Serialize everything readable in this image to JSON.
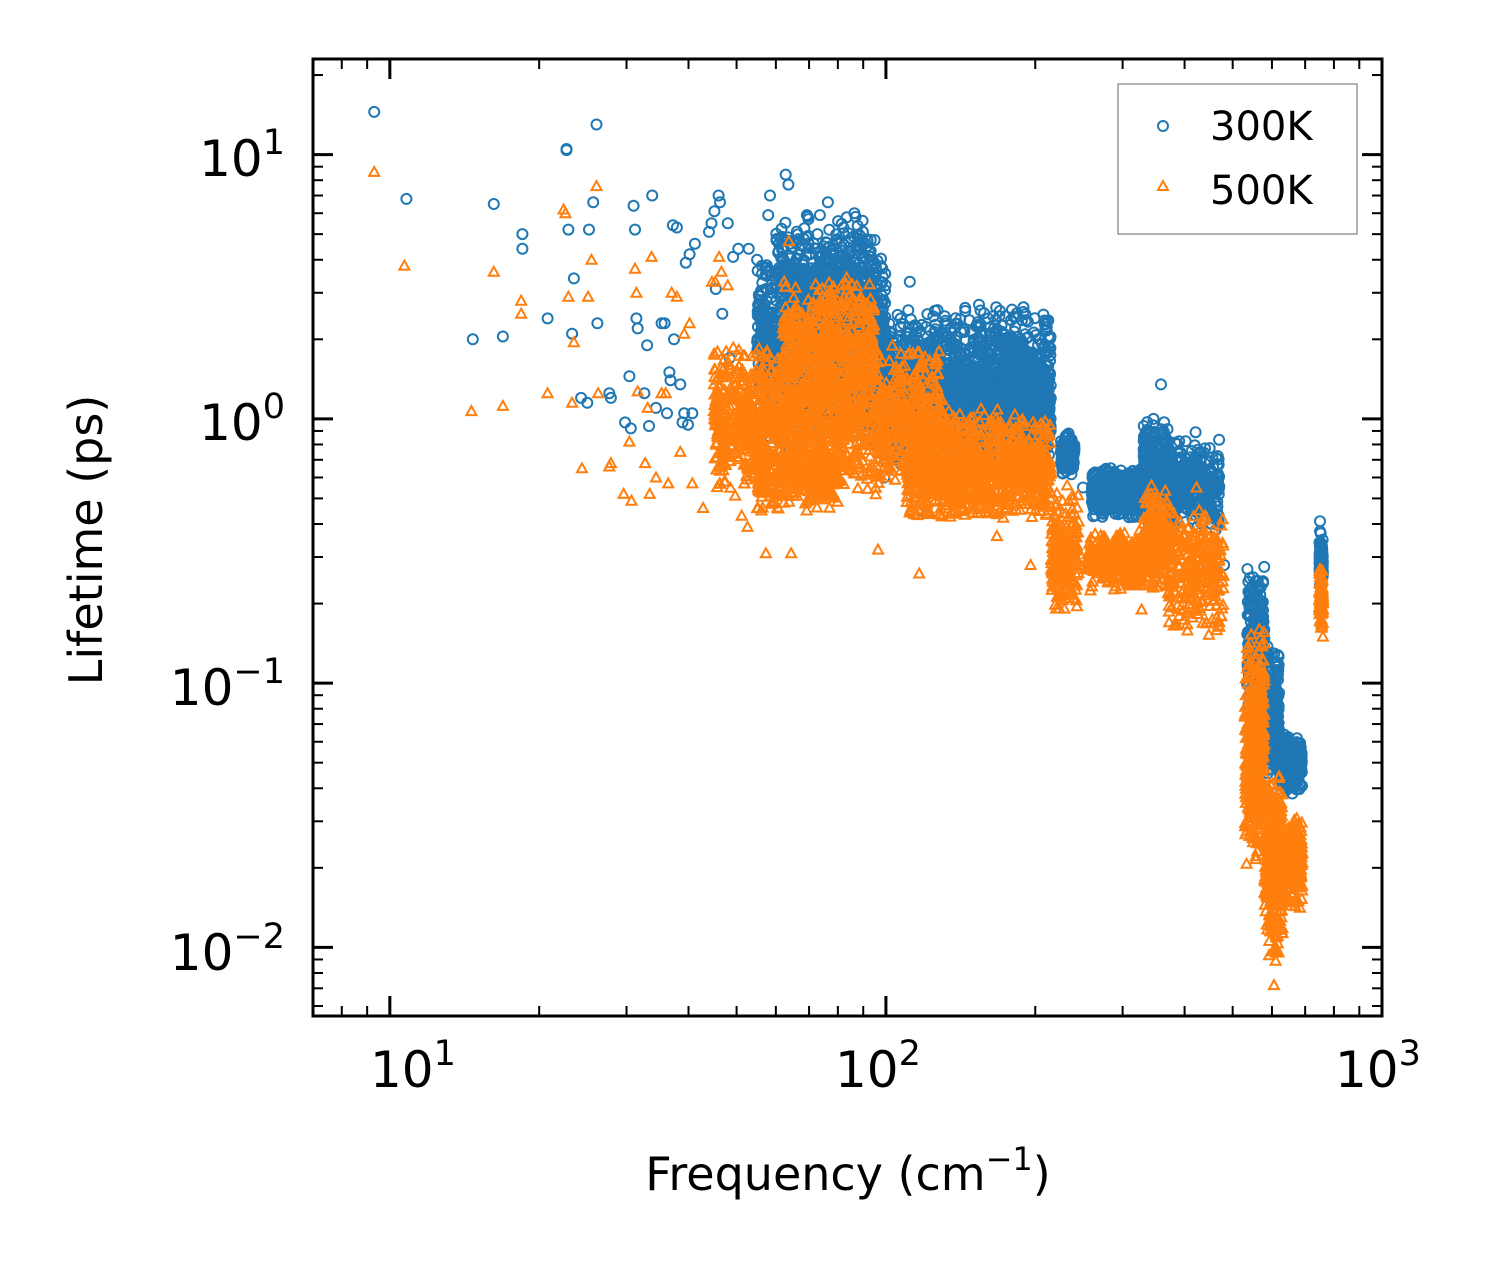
{
  "chart_data": {
    "type": "scatter",
    "title": "",
    "xlabel": "Frequency (cm",
    "xlabel_sup": "−1",
    "xlabel_tail": ")",
    "ylabel": "Lifetime (ps)",
    "xscale": "log",
    "yscale": "log",
    "xlim": [
      7,
      1000
    ],
    "ylim": [
      0.0055,
      23
    ],
    "legend_position": "top-right",
    "x_ticks": [
      {
        "base": "10",
        "exp": "1"
      },
      {
        "base": "10",
        "exp": "2"
      },
      {
        "base": "10",
        "exp": "3"
      }
    ],
    "y_ticks": [
      {
        "base": "10",
        "exp": "1"
      },
      {
        "base": "10",
        "exp": "0"
      },
      {
        "base": "10",
        "exp": "−1"
      },
      {
        "base": "10",
        "exp": "−2"
      }
    ],
    "series": [
      {
        "name": "300K",
        "marker": "circle",
        "color": "#1f77b4",
        "points": [
          [
            9.3,
            14.5
          ],
          [
            10.8,
            6.8
          ],
          [
            14.7,
            2.0
          ],
          [
            16.2,
            6.5
          ],
          [
            16.9,
            2.05
          ],
          [
            18.5,
            5.0
          ],
          [
            18.5,
            4.4
          ],
          [
            20.8,
            2.4
          ],
          [
            22.7,
            10.5
          ],
          [
            22.7,
            10.4
          ],
          [
            22.9,
            5.2
          ],
          [
            23.3,
            2.1
          ],
          [
            23.5,
            3.4
          ],
          [
            24.3,
            1.2
          ],
          [
            25.0,
            1.15
          ],
          [
            25.2,
            5.2
          ],
          [
            25.7,
            6.6
          ],
          [
            26.1,
            13.0
          ],
          [
            26.2,
            2.3
          ],
          [
            27.7,
            1.25
          ],
          [
            27.9,
            1.2
          ],
          [
            29.8,
            0.97
          ],
          [
            30.4,
            1.45
          ],
          [
            30.6,
            0.92
          ],
          [
            31.0,
            6.4
          ],
          [
            31.2,
            5.2
          ],
          [
            31.4,
            2.4
          ],
          [
            31.6,
            2.2
          ],
          [
            32.6,
            1.25
          ],
          [
            33.0,
            1.9
          ],
          [
            33.3,
            0.94
          ],
          [
            33.8,
            7.0
          ],
          [
            34.4,
            1.1
          ],
          [
            35.3,
            2.3
          ],
          [
            35.8,
            2.3
          ],
          [
            36.2,
            1.05
          ],
          [
            36.6,
            1.5
          ],
          [
            36.8,
            1.4
          ],
          [
            37.2,
            5.4
          ],
          [
            37.4,
            2.0
          ],
          [
            37.9,
            5.3
          ],
          [
            38.5,
            1.35
          ],
          [
            38.9,
            0.97
          ],
          [
            39.2,
            1.05
          ],
          [
            39.5,
            3.9
          ],
          [
            39.9,
            0.95
          ],
          [
            40.2,
            4.2
          ],
          [
            40.7,
            1.05
          ],
          [
            41.2,
            4.6
          ],
          [
            44.0,
            5.1
          ],
          [
            44.5,
            5.5
          ],
          [
            45.1,
            6.1
          ],
          [
            45.4,
            3.1
          ],
          [
            46.0,
            7.0
          ],
          [
            46.3,
            6.6
          ],
          [
            46.8,
            2.5
          ],
          [
            47.2,
            1.0
          ],
          [
            47.6,
            0.87
          ],
          [
            48.0,
            5.5
          ],
          [
            48.4,
            1.7
          ],
          [
            48.7,
            1.0
          ],
          [
            49.2,
            4.1
          ],
          [
            50.4,
            4.4
          ],
          [
            52.0,
            1.05
          ],
          [
            52.9,
            4.4
          ],
          [
            55.0,
            4.0
          ],
          [
            57.9,
            5.9
          ],
          [
            58.4,
            7.0
          ],
          [
            62.8,
            8.4
          ],
          [
            63.6,
            7.7
          ],
          [
            69.3,
            5.9
          ],
          [
            69.8,
            5.7
          ],
          [
            73.6,
            5.9
          ],
          [
            76.4,
            6.6
          ],
          [
            80.1,
            5.6
          ],
          [
            82.1,
            5.3
          ],
          [
            86.4,
            6.0
          ],
          [
            80.7,
            3.9
          ],
          [
            95.2,
            1.4
          ],
          [
            99.2,
            0.6
          ],
          [
            111.7,
            3.3
          ],
          [
            112.8,
            0.57
          ],
          [
            116.6,
            0.45
          ],
          [
            130.3,
            2.1
          ],
          [
            140.6,
            1.5
          ],
          [
            157.0,
            1.8
          ],
          [
            171.1,
            1.3
          ],
          [
            189.0,
            1.5
          ],
          [
            213.5,
            1.1
          ],
          [
            233.5,
            0.88
          ],
          [
            249.6,
            0.55
          ],
          [
            283.8,
            0.65
          ],
          [
            319.2,
            0.58
          ],
          [
            333.4,
            0.88
          ],
          [
            346.3,
            1.0
          ],
          [
            358.5,
            1.35
          ],
          [
            369.1,
            0.78
          ],
          [
            394.8,
            0.62
          ],
          [
            420.9,
            0.89
          ],
          [
            435.5,
            0.55
          ],
          [
            462.1,
            0.38
          ],
          [
            480.6,
            0.28
          ],
          [
            535.4,
            0.27
          ],
          [
            569.3,
            0.23
          ],
          [
            600.2,
            0.13
          ],
          [
            620.8,
            0.065
          ],
          [
            649.1,
            0.054
          ],
          [
            676.2,
            0.047
          ],
          [
            750.0,
            0.41
          ],
          [
            760.1,
            0.26
          ]
        ],
        "clusters": [
          {
            "xr": [
              55,
              100
            ],
            "yr": [
              0.75,
              4.5
            ],
            "n": 1300
          },
          {
            "xr": [
              60,
              95
            ],
            "yr": [
              2.2,
              6.0
            ],
            "n": 350
          },
          {
            "xr": [
              95,
              215
            ],
            "yr": [
              0.6,
              2.8
            ],
            "n": 1600
          },
          {
            "xr": [
              130,
              215
            ],
            "yr": [
              0.75,
              1.6
            ],
            "n": 600
          },
          {
            "xr": [
              225,
              240
            ],
            "yr": [
              0.6,
              0.88
            ],
            "n": 140
          },
          {
            "xr": [
              260,
              330
            ],
            "yr": [
              0.42,
              0.66
            ],
            "n": 450
          },
          {
            "xr": [
              330,
              370
            ],
            "yr": [
              0.38,
              1.0
            ],
            "n": 300
          },
          {
            "xr": [
              370,
              470
            ],
            "yr": [
              0.38,
              0.85
            ],
            "n": 320
          },
          {
            "xr": [
              535,
              580
            ],
            "yr": [
              0.075,
              0.28
            ],
            "n": 260
          },
          {
            "xr": [
              580,
              620
            ],
            "yr": [
              0.045,
              0.15
            ],
            "n": 200
          },
          {
            "xr": [
              620,
              690
            ],
            "yr": [
              0.038,
              0.065
            ],
            "n": 260
          },
          {
            "xr": [
              748,
              760
            ],
            "yr": [
              0.22,
              0.38
            ],
            "n": 90
          }
        ]
      },
      {
        "name": "500K",
        "marker": "triangle",
        "color": "#ff7f0e",
        "points": [
          [
            9.3,
            8.6
          ],
          [
            10.7,
            3.8
          ],
          [
            14.6,
            1.07
          ],
          [
            16.2,
            3.6
          ],
          [
            16.9,
            1.12
          ],
          [
            18.4,
            2.8
          ],
          [
            18.4,
            2.5
          ],
          [
            20.8,
            1.25
          ],
          [
            22.4,
            6.2
          ],
          [
            22.6,
            6.0
          ],
          [
            22.9,
            2.9
          ],
          [
            23.3,
            1.15
          ],
          [
            23.5,
            1.95
          ],
          [
            24.4,
            0.65
          ],
          [
            25.1,
            2.9
          ],
          [
            25.5,
            4.0
          ],
          [
            26.1,
            7.6
          ],
          [
            26.3,
            1.25
          ],
          [
            27.7,
            0.66
          ],
          [
            27.9,
            0.68
          ],
          [
            29.6,
            0.52
          ],
          [
            30.4,
            0.82
          ],
          [
            30.7,
            0.49
          ],
          [
            31.2,
            3.7
          ],
          [
            31.4,
            3.0
          ],
          [
            31.6,
            1.27
          ],
          [
            32.7,
            0.68
          ],
          [
            33.1,
            1.1
          ],
          [
            33.4,
            0.52
          ],
          [
            33.7,
            4.1
          ],
          [
            34.4,
            0.6
          ],
          [
            35.3,
            1.25
          ],
          [
            36.0,
            1.25
          ],
          [
            36.4,
            0.57
          ],
          [
            37.0,
            3.0
          ],
          [
            37.9,
            2.9
          ],
          [
            38.5,
            0.75
          ],
          [
            39.2,
            2.1
          ],
          [
            40.2,
            2.3
          ],
          [
            40.7,
            0.57
          ],
          [
            42.8,
            0.46
          ],
          [
            44.6,
            3.3
          ],
          [
            45.3,
            3.3
          ],
          [
            46.1,
            4.1
          ],
          [
            46.6,
            3.6
          ],
          [
            48.0,
            3.2
          ],
          [
            51.2,
            0.43
          ],
          [
            52.6,
            0.39
          ],
          [
            55.2,
            0.46
          ],
          [
            56.1,
            0.45
          ],
          [
            57.3,
            0.31
          ],
          [
            59.4,
            0.48
          ],
          [
            63.7,
            4.7
          ],
          [
            64.4,
            0.31
          ],
          [
            69.2,
            0.45
          ],
          [
            96.4,
            0.32
          ],
          [
            116.7,
            0.26
          ],
          [
            112.8,
            0.45
          ],
          [
            132.0,
            0.62
          ],
          [
            167.4,
            0.36
          ],
          [
            195.7,
            0.28
          ],
          [
            214.7,
            0.5
          ],
          [
            232.0,
            0.56
          ],
          [
            251.8,
            0.27
          ],
          [
            318.7,
            0.24
          ],
          [
            327.6,
            0.19
          ],
          [
            343.1,
            0.56
          ],
          [
            372.5,
            0.17
          ],
          [
            411.3,
            0.24
          ],
          [
            422.8,
            0.55
          ],
          [
            473.6,
            0.18
          ],
          [
            533.6,
            0.082
          ],
          [
            565.9,
            0.16
          ],
          [
            605.8,
            0.0072
          ],
          [
            610.4,
            0.0089
          ],
          [
            683.6,
            0.026
          ],
          [
            750.0,
            0.27
          ],
          [
            760.1,
            0.15
          ]
        ],
        "clusters": [
          {
            "xr": [
              45,
              130
            ],
            "yr": [
              0.5,
              2.0
            ],
            "n": 1500
          },
          {
            "xr": [
              62,
              95
            ],
            "yr": [
              1.2,
              3.5
            ],
            "n": 400
          },
          {
            "xr": [
              55,
              80
            ],
            "yr": [
              0.45,
              0.8
            ],
            "n": 300
          },
          {
            "xr": [
              110,
              215
            ],
            "yr": [
              0.4,
              1.1
            ],
            "n": 1100
          },
          {
            "xr": [
              215,
              245
            ],
            "yr": [
              0.18,
              0.55
            ],
            "n": 200
          },
          {
            "xr": [
              255,
              330
            ],
            "yr": [
              0.22,
              0.38
            ],
            "n": 320
          },
          {
            "xr": [
              330,
              370
            ],
            "yr": [
              0.22,
              0.55
            ],
            "n": 260
          },
          {
            "xr": [
              370,
              480
            ],
            "yr": [
              0.15,
              0.48
            ],
            "n": 300
          },
          {
            "xr": [
              530,
              580
            ],
            "yr": [
              0.02,
              0.17
            ],
            "n": 380
          },
          {
            "xr": [
              580,
              630
            ],
            "yr": [
              0.009,
              0.05
            ],
            "n": 330
          },
          {
            "xr": [
              630,
              690
            ],
            "yr": [
              0.014,
              0.032
            ],
            "n": 260
          },
          {
            "xr": [
              748,
              760
            ],
            "yr": [
              0.16,
              0.27
            ],
            "n": 90
          }
        ]
      }
    ]
  }
}
